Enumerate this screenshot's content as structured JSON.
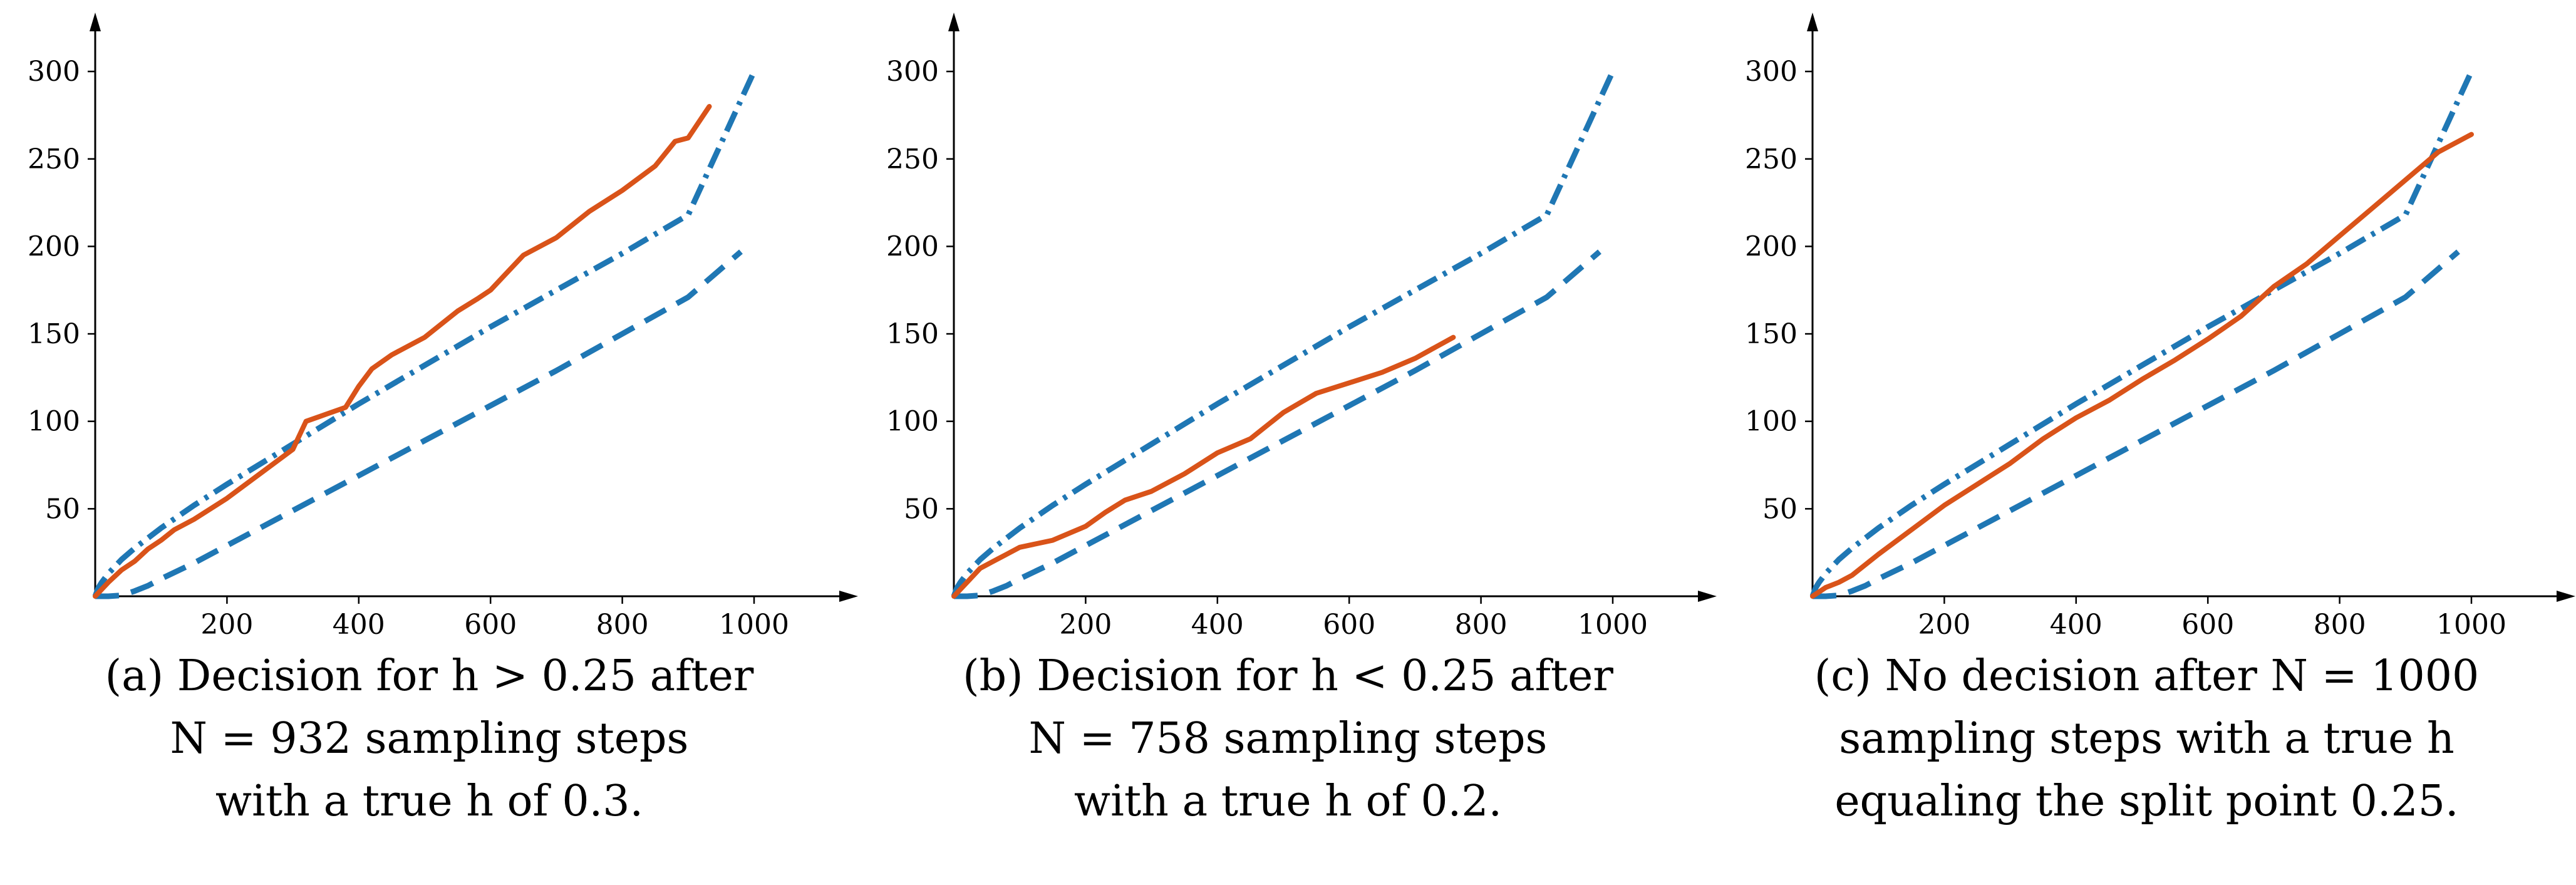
{
  "colors": {
    "bound": "#1f77b4",
    "trajectory": "#d95319",
    "axis": "#000000"
  },
  "chart_data": [
    {
      "type": "line",
      "panel": "a",
      "x_ticks": [
        "200",
        "400",
        "600",
        "800",
        "1000"
      ],
      "y_ticks": [
        "50",
        "100",
        "150",
        "200",
        "250",
        "300"
      ],
      "xlim": [
        0,
        1150
      ],
      "ylim": [
        0,
        335
      ],
      "grid": false,
      "caption_lines": [
        "(a) Decision for h > 0.25 after",
        "N = 932 sampling steps",
        "with a true h of 0.3."
      ],
      "series": [
        {
          "style": "dash-dot",
          "color": "#1f77b4",
          "x": [
            0,
            5,
            10,
            20,
            40,
            60,
            100,
            150,
            200,
            300,
            400,
            500,
            600,
            700,
            800,
            900,
            1000
          ],
          "y": [
            0,
            5,
            8,
            13,
            21,
            27.5,
            39,
            52,
            64,
            87,
            110,
            132,
            154,
            175,
            196,
            218,
            300
          ]
        },
        {
          "style": "dashed",
          "color": "#1f77b4",
          "x": [
            0,
            20,
            40,
            60,
            80,
            100,
            150,
            200,
            300,
            400,
            500,
            600,
            700,
            800,
            900,
            980
          ],
          "y": [
            0,
            0,
            0.5,
            3,
            6,
            10,
            19,
            29,
            49,
            69,
            89,
            109,
            129,
            150,
            171,
            197
          ]
        },
        {
          "style": "solid",
          "color": "#d95319",
          "x": [
            0,
            20,
            40,
            60,
            80,
            100,
            120,
            150,
            200,
            250,
            300,
            320,
            350,
            380,
            400,
            420,
            450,
            500,
            550,
            580,
            600,
            620,
            650,
            700,
            750,
            800,
            850,
            880,
            900,
            932
          ],
          "y": [
            0,
            8,
            15,
            20,
            27,
            32,
            38,
            44,
            56,
            70,
            84,
            100,
            104,
            108,
            120,
            130,
            138,
            148,
            163,
            170,
            175,
            183,
            195,
            205,
            220,
            232,
            246,
            260,
            262,
            280
          ]
        }
      ]
    },
    {
      "type": "line",
      "panel": "b",
      "x_ticks": [
        "200",
        "400",
        "600",
        "800",
        "1000"
      ],
      "y_ticks": [
        "50",
        "100",
        "150",
        "200",
        "250",
        "300"
      ],
      "xlim": [
        0,
        1150
      ],
      "ylim": [
        0,
        335
      ],
      "grid": false,
      "caption_lines": [
        "(b) Decision for h < 0.25 after",
        "N = 758 sampling steps",
        "with a true h of 0.2."
      ],
      "series": [
        {
          "style": "dash-dot",
          "color": "#1f77b4",
          "x": [
            0,
            5,
            10,
            20,
            40,
            60,
            100,
            150,
            200,
            300,
            400,
            500,
            600,
            700,
            800,
            900,
            1000
          ],
          "y": [
            0,
            5,
            8,
            13,
            21,
            27.5,
            39,
            52,
            64,
            87,
            110,
            132,
            154,
            175,
            196,
            218,
            300
          ]
        },
        {
          "style": "dashed",
          "color": "#1f77b4",
          "x": [
            0,
            20,
            40,
            60,
            80,
            100,
            150,
            200,
            300,
            400,
            500,
            600,
            700,
            800,
            900,
            980
          ],
          "y": [
            0,
            0,
            0.5,
            3,
            6,
            10,
            19,
            29,
            49,
            69,
            89,
            109,
            129,
            150,
            171,
            197
          ]
        },
        {
          "style": "solid",
          "color": "#d95319",
          "x": [
            0,
            20,
            40,
            60,
            80,
            100,
            150,
            200,
            230,
            260,
            300,
            350,
            400,
            450,
            500,
            550,
            600,
            650,
            700,
            758
          ],
          "y": [
            0,
            8,
            16,
            20,
            24,
            28,
            32,
            40,
            48,
            55,
            60,
            70,
            82,
            90,
            105,
            116,
            122,
            128,
            136,
            148
          ]
        }
      ]
    },
    {
      "type": "line",
      "panel": "c",
      "x_ticks": [
        "200",
        "400",
        "600",
        "800",
        "1000"
      ],
      "y_ticks": [
        "50",
        "100",
        "150",
        "200",
        "250",
        "300"
      ],
      "xlim": [
        0,
        1150
      ],
      "ylim": [
        0,
        335
      ],
      "grid": false,
      "caption_lines": [
        "(c) No decision after N = 1000",
        "sampling steps with a true h",
        "equaling the split point 0.25."
      ],
      "series": [
        {
          "style": "dash-dot",
          "color": "#1f77b4",
          "x": [
            0,
            5,
            10,
            20,
            40,
            60,
            100,
            150,
            200,
            300,
            400,
            500,
            600,
            700,
            800,
            900,
            1000
          ],
          "y": [
            0,
            5,
            8,
            13,
            21,
            27.5,
            39,
            52,
            64,
            87,
            110,
            132,
            154,
            175,
            196,
            218,
            300
          ]
        },
        {
          "style": "dashed",
          "color": "#1f77b4",
          "x": [
            0,
            20,
            40,
            60,
            80,
            100,
            150,
            200,
            300,
            400,
            500,
            600,
            700,
            800,
            900,
            980
          ],
          "y": [
            0,
            0,
            0.5,
            3,
            6,
            10,
            19,
            29,
            49,
            69,
            89,
            109,
            129,
            150,
            171,
            197
          ]
        },
        {
          "style": "solid",
          "color": "#d95319",
          "x": [
            0,
            20,
            40,
            60,
            100,
            150,
            200,
            250,
            300,
            350,
            400,
            450,
            500,
            550,
            600,
            650,
            700,
            750,
            800,
            850,
            900,
            950,
            1000
          ],
          "y": [
            0,
            5,
            8,
            12,
            24,
            38,
            52,
            64,
            76,
            90,
            102,
            112,
            124,
            135,
            147,
            160,
            177,
            190,
            206,
            222,
            238,
            254,
            264
          ]
        }
      ]
    }
  ]
}
